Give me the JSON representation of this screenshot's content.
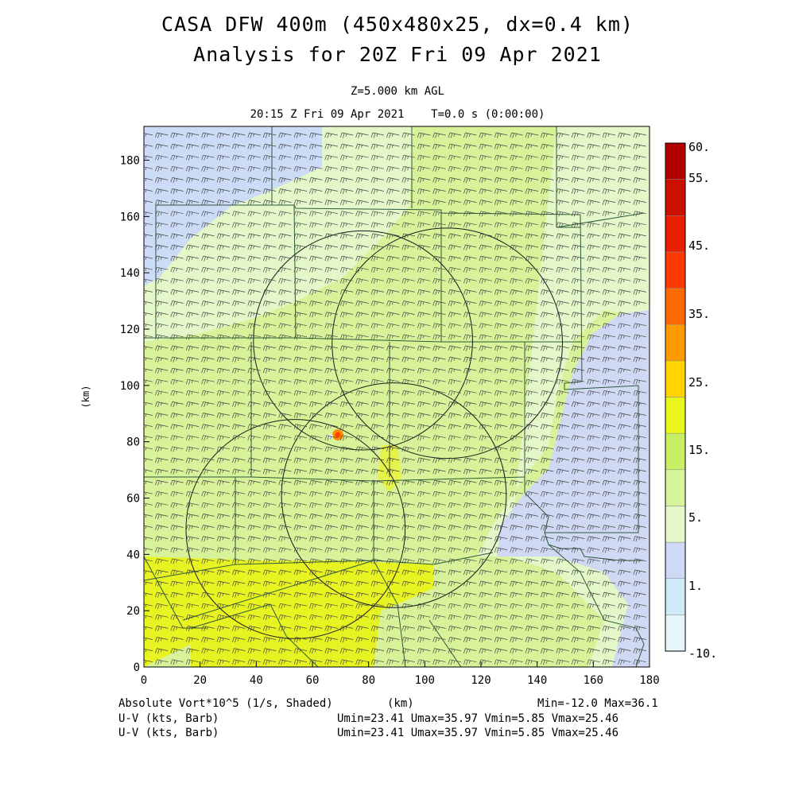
{
  "header": {
    "title_line1": "CASA DFW 400m (450x480x25, dx=0.4 km)",
    "title_line2": "Analysis for 20Z Fri 09 Apr 2021",
    "level": "Z=5.000 km AGL",
    "time": "20:15 Z Fri 09 Apr 2021    T=0.0 s (0:00:00)"
  },
  "footer": {
    "field_label": "Absolute Vort*10^5 (1/s, Shaded)",
    "xunit": "(km)",
    "minmax": "Min=-12.0 Max=36.1",
    "barb1_label": "U-V (kts, Barb)",
    "barb1_stats": "Umin=23.41 Umax=35.97 Vmin=5.85 Vmax=25.46",
    "barb2_label": "U-V (kts, Barb)",
    "barb2_stats": "Umin=23.41 Umax=35.97 Vmin=5.85 Vmax=25.46"
  },
  "colorbar": {
    "labels": [
      "60.",
      "55.",
      "45.",
      "35.",
      "25.",
      "15.",
      "5.",
      "1.",
      "-10."
    ],
    "colors": [
      "#e6f6fb",
      "#cfe9f6",
      "#cdd9f5",
      "#e6f8c8",
      "#d7f59a",
      "#c8f066",
      "#e9f61d",
      "#ffd400",
      "#ff9b00",
      "#ff6a00",
      "#ff3a00",
      "#e61f00",
      "#cc1000",
      "#b20000"
    ]
  },
  "chart_data": {
    "type": "heatmap",
    "title": "CASA DFW 400m (450x480x25, dx=0.4 km) Analysis for 20Z Fri 09 Apr 2021",
    "xlabel": "(km)",
    "ylabel": "(km)",
    "xlim": [
      0,
      180
    ],
    "ylim": [
      0,
      192
    ],
    "x_ticks": [
      0,
      20,
      40,
      60,
      80,
      100,
      120,
      140,
      160,
      180
    ],
    "y_ticks": [
      0,
      20,
      40,
      60,
      80,
      100,
      120,
      140,
      160,
      180
    ],
    "field": "Absolute Vort*10^5 (1/s)",
    "field_min": -12.0,
    "field_max": 36.1,
    "vector_field": "U-V (kts, Barb)",
    "umin": 23.41,
    "umax": 35.97,
    "vmin": 5.85,
    "vmax": 25.46,
    "radar_rings": [
      {
        "center": [
          78,
          116
        ],
        "radius": 39
      },
      {
        "center": [
          108,
          115
        ],
        "radius": 41
      },
      {
        "center": [
          54,
          49
        ],
        "radius": 39
      },
      {
        "center": [
          89,
          61
        ],
        "radius": 40
      }
    ],
    "vort_max_location": [
      70,
      82
    ]
  }
}
